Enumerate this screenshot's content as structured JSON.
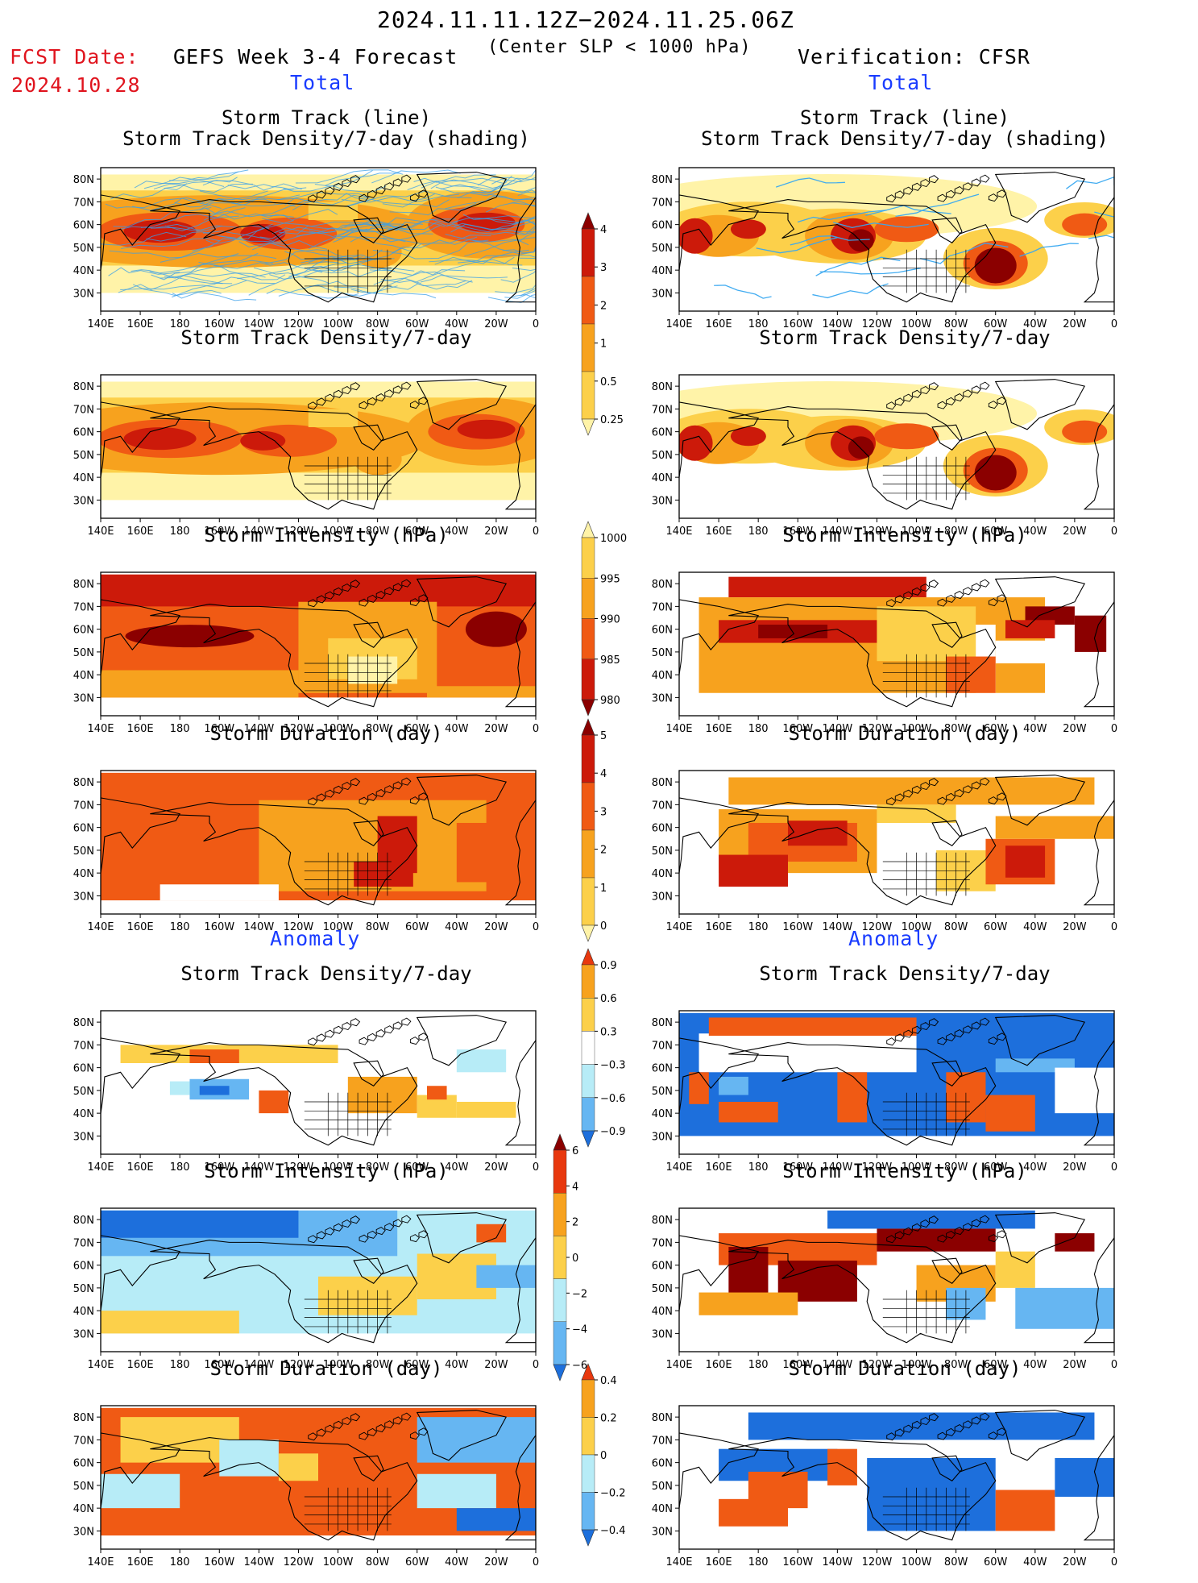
{
  "header": {
    "date_range": "2024.11.11.12Z−2024.11.25.06Z",
    "fcst_label": "FCST Date:",
    "fcst_date": "2024.10.28",
    "left_title": "GEFS Week 3-4 Forecast",
    "subtitle": "(Center SLP < 1000 hPa)",
    "right_title": "Verification: CFSR",
    "section_total_left": "Total",
    "section_total_right": "Total",
    "section_anomaly_left": "Anomaly",
    "section_anomaly_right": "Anomaly"
  },
  "map_axes": {
    "lon_labels": [
      "140E",
      "160E",
      "180",
      "160W",
      "140W",
      "120W",
      "100W",
      "80W",
      "60W",
      "40W",
      "20W",
      "0"
    ],
    "lat_labels": [
      "80N",
      "70N",
      "60N",
      "50N",
      "40N",
      "30N"
    ]
  },
  "panel_titles": {
    "track_line": "Storm Track (line)",
    "track_density_shading": "Storm Track Density/7-day (shading)",
    "track_density": "Storm Track Density/7-day",
    "intensity": "Storm Intensity (hPa)",
    "duration": "Storm Duration (day)"
  },
  "colorbars": {
    "density": {
      "labels": [
        "4",
        "3",
        "2",
        "1",
        "0.5",
        "0.25"
      ],
      "colors": [
        "#8b0000",
        "#cc1a0a",
        "#f05a14",
        "#f7a21e",
        "#fcd04a",
        "#fff3a8"
      ]
    },
    "intensity": {
      "labels": [
        "1000",
        "995",
        "990",
        "985",
        "980"
      ],
      "colors": [
        "#fff3a8",
        "#fcd04a",
        "#f7a21e",
        "#f05a14",
        "#cc1a0a",
        "#8b0000"
      ]
    },
    "duration": {
      "labels": [
        "5",
        "4",
        "3",
        "2",
        "1",
        "0"
      ],
      "colors": [
        "#8b0000",
        "#cc1a0a",
        "#f05a14",
        "#f7a21e",
        "#fcd04a",
        "#fff3a8"
      ]
    },
    "anom_density": {
      "labels": [
        "0.9",
        "0.6",
        "0.3",
        "−0.3",
        "−0.6",
        "−0.9"
      ],
      "colors": [
        "#e8380e",
        "#f7a21e",
        "#fcd04a",
        "#ffffff",
        "#b7ecf7",
        "#66b6f2",
        "#1d6fdc"
      ]
    },
    "anom_intensity": {
      "labels": [
        "6",
        "4",
        "2",
        "0",
        "−2",
        "−4",
        "−6"
      ],
      "colors": [
        "#8b0000",
        "#e8380e",
        "#f7a21e",
        "#fcd04a",
        "#b7ecf7",
        "#66b6f2",
        "#1d6fdc"
      ]
    },
    "anom_duration": {
      "labels": [
        "0.4",
        "0.2",
        "0",
        "−0.2",
        "−0.4"
      ],
      "colors": [
        "#e8380e",
        "#f7a21e",
        "#fcd04a",
        "#b7ecf7",
        "#66b6f2",
        "#1d6fdc"
      ]
    }
  }
}
